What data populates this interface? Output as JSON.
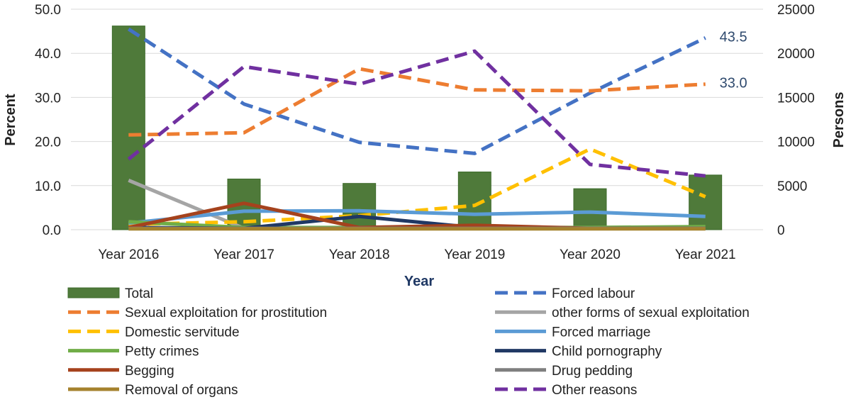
{
  "chart_data": {
    "type": "bar+line",
    "categories": [
      "Year 2016",
      "Year 2017",
      "Year 2018",
      "Year 2019",
      "Year 2020",
      "Year 2021"
    ],
    "xlabel": "Year",
    "ylabel_left": "Percent",
    "ylabel_right": "Persons",
    "ylim_left": [
      0,
      50
    ],
    "ylim_right": [
      0,
      25000
    ],
    "yticks_left": [
      "0.0",
      "10.0",
      "20.0",
      "30.0",
      "40.0",
      "50.0"
    ],
    "yticks_right": [
      "0",
      "5000",
      "10000",
      "15000",
      "20000",
      "25000"
    ],
    "grid": true,
    "legend_position": "bottom",
    "bar_series": {
      "name": "Total",
      "axis": "right",
      "color": "#4f7a3a",
      "values": [
        23100,
        5750,
        5250,
        6550,
        4650,
        6200
      ]
    },
    "series": [
      {
        "name": "Forced labour",
        "axis": "left",
        "style": "dashed",
        "color": "#4472c4",
        "values": [
          45.5,
          28.5,
          19.8,
          17.3,
          31.0,
          43.5
        ]
      },
      {
        "name": "Sexual exploitation for prostitution",
        "axis": "left",
        "style": "dashed",
        "color": "#ed7d31",
        "values": [
          21.5,
          22.0,
          36.5,
          31.7,
          31.5,
          33.0
        ]
      },
      {
        "name": "other forms of sexual exploitation",
        "axis": "left",
        "style": "solid",
        "color": "#a5a5a5",
        "values": [
          11.2,
          0.3,
          0.3,
          0.3,
          0.3,
          0.3
        ]
      },
      {
        "name": "Domestic servitude",
        "axis": "left",
        "style": "dashed",
        "color": "#ffc000",
        "values": [
          1.2,
          1.8,
          3.2,
          5.5,
          18.3,
          7.5
        ]
      },
      {
        "name": "Forced marriage",
        "axis": "left",
        "style": "solid",
        "color": "#5b9bd5",
        "values": [
          1.5,
          4.2,
          4.3,
          3.5,
          4.0,
          3.0
        ]
      },
      {
        "name": "Petty crimes",
        "axis": "left",
        "style": "solid",
        "color": "#70ad47",
        "values": [
          1.8,
          0.5,
          0.5,
          0.5,
          0.5,
          0.7
        ]
      },
      {
        "name": "Child pornography",
        "axis": "left",
        "style": "solid",
        "color": "#203864",
        "values": [
          0.5,
          0.3,
          3.0,
          0.5,
          0.3,
          0.3
        ]
      },
      {
        "name": "Begging",
        "axis": "left",
        "style": "solid",
        "color": "#a5421d",
        "values": [
          0.5,
          6.0,
          0.5,
          1.0,
          0.3,
          0.3
        ]
      },
      {
        "name": "Drug pedding",
        "axis": "left",
        "style": "solid",
        "color": "#7f7f7f",
        "values": [
          0.3,
          0.3,
          0.3,
          0.3,
          0.3,
          0.3
        ]
      },
      {
        "name": "Removal of organs",
        "axis": "left",
        "style": "solid",
        "color": "#a5822d",
        "values": [
          0.2,
          0.2,
          0.2,
          0.2,
          0.2,
          0.2
        ]
      },
      {
        "name": "Other reasons",
        "axis": "left",
        "style": "dashed",
        "color": "#7030a0",
        "values": [
          16.0,
          37.0,
          33.0,
          40.5,
          14.8,
          12.2
        ]
      }
    ],
    "annotations": [
      {
        "series": "Forced labour",
        "category": "Year 2021",
        "text": "43.5"
      },
      {
        "series": "Sexual exploitation for prostitution",
        "category": "Year 2021",
        "text": "33.0"
      }
    ],
    "legend_order": [
      "Total",
      "Forced labour",
      "Sexual exploitation for prostitution",
      "other forms of sexual exploitation",
      "Domestic servitude",
      "Forced marriage",
      "Petty crimes",
      "Child pornography",
      "Begging",
      "Drug pedding",
      "Removal of organs",
      "Other reasons"
    ]
  }
}
